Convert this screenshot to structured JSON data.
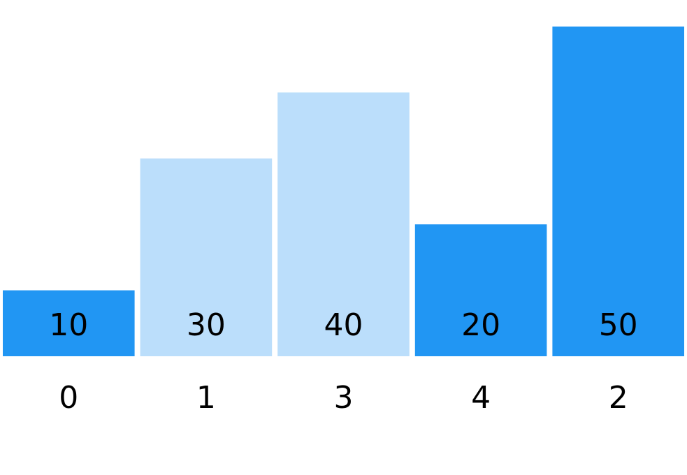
{
  "chart_data": {
    "type": "bar",
    "categories": [
      "0",
      "1",
      "3",
      "4",
      "2"
    ],
    "values": [
      10,
      30,
      40,
      20,
      50
    ],
    "highlighted": [
      true,
      false,
      false,
      true,
      true
    ],
    "colors": {
      "highlight": "#2196F3",
      "muted": "#BBDEFB",
      "label": "#000000"
    },
    "ylim": [
      0,
      50
    ],
    "grid": false,
    "legend": "none",
    "title": "",
    "xlabel": "",
    "ylabel": ""
  }
}
